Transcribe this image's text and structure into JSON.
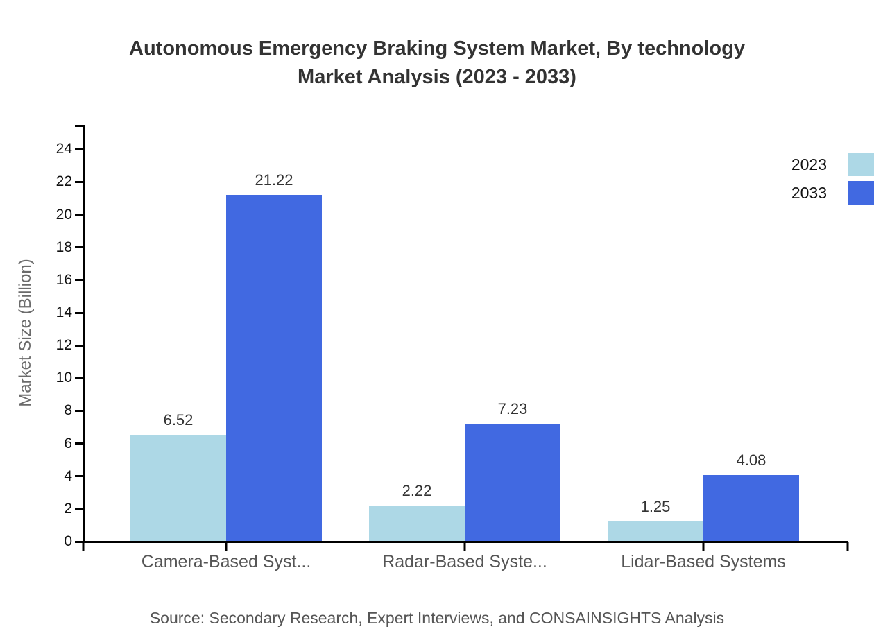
{
  "header": {
    "title_line1": "Autonomous Emergency Braking System Market, By technology",
    "title_line2": "Market Analysis (2023 - 2033)"
  },
  "footer": {
    "source": "Source: Secondary Research, Expert Interviews, and CONSAINSIGHTS Analysis"
  },
  "chart_data": {
    "type": "bar",
    "title": "Autonomous Emergency Braking System Market, By technology Market Analysis (2023 - 2033)",
    "categories": [
      "Camera-Based Syst...",
      "Radar-Based Syste...",
      "Lidar-Based Systems"
    ],
    "series": [
      {
        "name": "2023",
        "color": "#ADD8E6",
        "values": [
          6.52,
          2.22,
          1.25
        ]
      },
      {
        "name": "2033",
        "color": "#4169E1",
        "values": [
          21.22,
          7.23,
          4.08
        ]
      }
    ],
    "xlabel": "",
    "ylabel": "Market Size (Billion)",
    "yticks": [
      0,
      2,
      4,
      6,
      8,
      10,
      12,
      14,
      16,
      18,
      20,
      22,
      24
    ],
    "ylim": [
      0,
      25.5
    ],
    "grid": false,
    "legend_position": "top-right",
    "value_labels_shown": true,
    "axis_color": "#000000",
    "background_color": "#ffffff"
  }
}
